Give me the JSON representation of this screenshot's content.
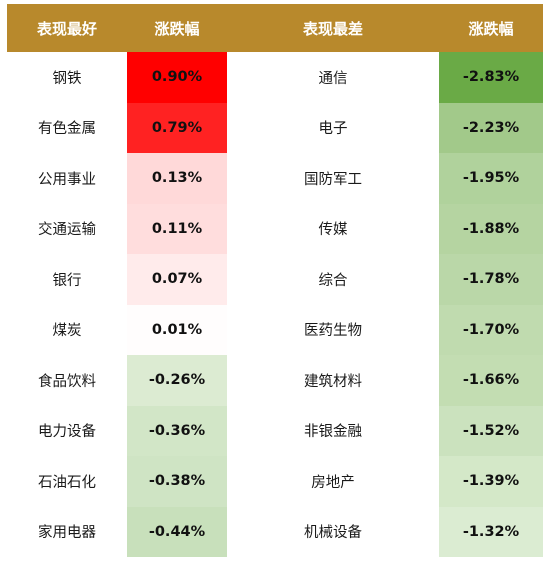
{
  "chart_data": {
    "type": "table",
    "header": {
      "best_label": "表现最好",
      "best_change_label": "涨跌幅",
      "worst_label": "表现最差",
      "worst_change_label": "涨跌幅"
    },
    "best": [
      {
        "name": "钢铁",
        "change": "0.90%",
        "color": "#ff0000"
      },
      {
        "name": "有色金属",
        "change": "0.79%",
        "color": "#ff2222"
      },
      {
        "name": "公用事业",
        "change": "0.13%",
        "color": "#ffd9d9"
      },
      {
        "name": "交通运输",
        "change": "0.11%",
        "color": "#ffdddd"
      },
      {
        "name": "银行",
        "change": "0.07%",
        "color": "#ffebeb"
      },
      {
        "name": "煤炭",
        "change": "0.01%",
        "color": "#fffdfd"
      },
      {
        "name": "食品饮料",
        "change": "-0.26%",
        "color": "#dcebd2"
      },
      {
        "name": "电力设备",
        "change": "-0.36%",
        "color": "#d2e6c7"
      },
      {
        "name": "石油石化",
        "change": "-0.38%",
        "color": "#cfe4c4"
      },
      {
        "name": "家用电器",
        "change": "-0.44%",
        "color": "#c8e0bb"
      }
    ],
    "worst": [
      {
        "name": "通信",
        "change": "-2.83%",
        "color": "#6aaa46"
      },
      {
        "name": "电子",
        "change": "-2.23%",
        "color": "#a2c98a"
      },
      {
        "name": "国防军工",
        "change": "-1.95%",
        "color": "#b0d29c"
      },
      {
        "name": "传媒",
        "change": "-1.88%",
        "color": "#b5d4a1"
      },
      {
        "name": "综合",
        "change": "-1.78%",
        "color": "#bad7a8"
      },
      {
        "name": "医药生物",
        "change": "-1.70%",
        "color": "#c0dbaf"
      },
      {
        "name": "建筑材料",
        "change": "-1.66%",
        "color": "#c3ddb2"
      },
      {
        "name": "非银金融",
        "change": "-1.52%",
        "color": "#cbe2be"
      },
      {
        "name": "房地产",
        "change": "-1.39%",
        "color": "#d4e8c8"
      },
      {
        "name": "机械设备",
        "change": "-1.32%",
        "color": "#dbecd2"
      }
    ]
  }
}
